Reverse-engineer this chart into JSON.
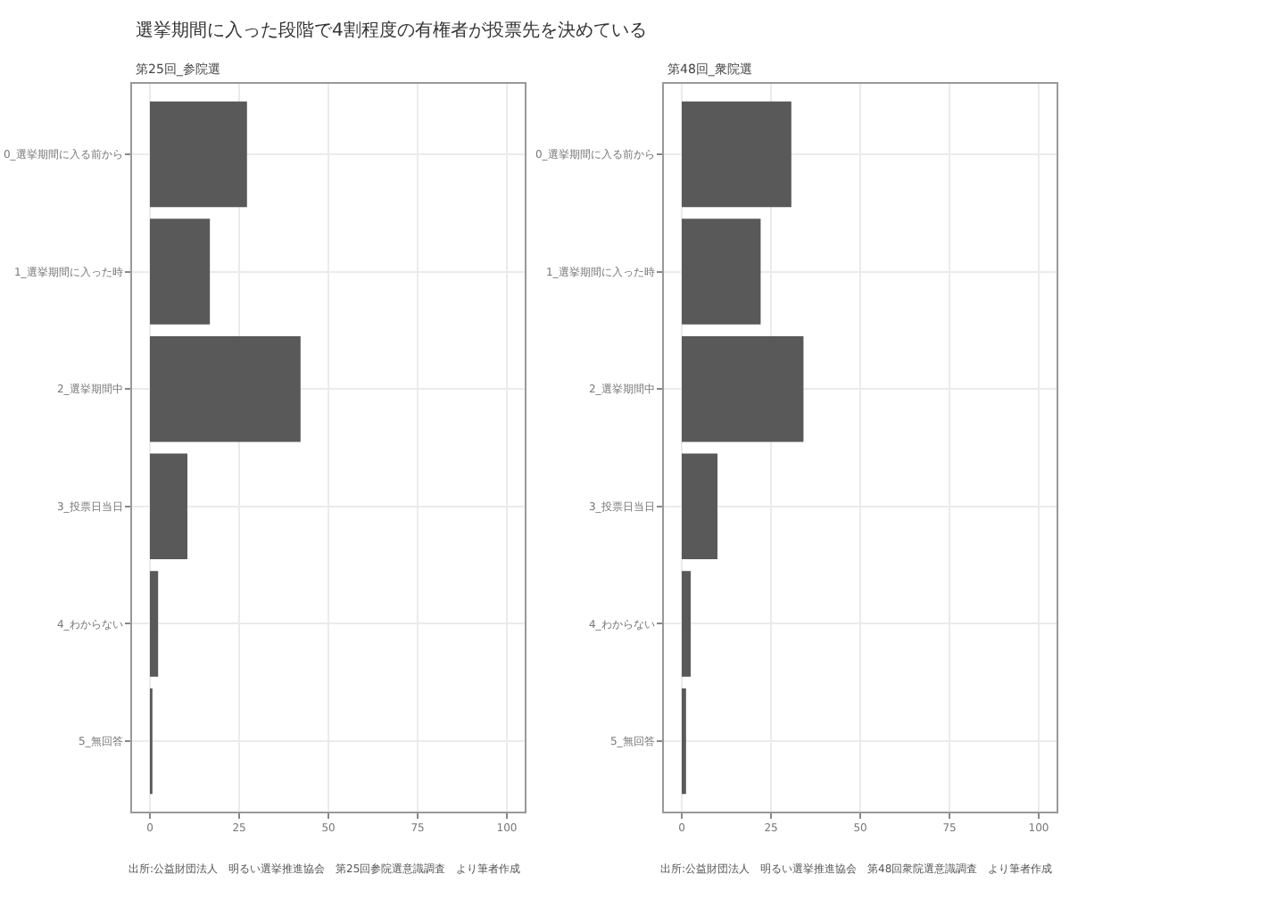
{
  "chart_data": [
    {
      "type": "bar",
      "orientation": "horizontal",
      "title": "選挙期間に入った段階で4割程度の有権者が投票先を決めている",
      "subtitle": "第25回_参院選",
      "categories": [
        "0_選挙期間に入る前から",
        "1_選挙期間に入った時",
        "2_選挙期間中",
        "3_投票日当日",
        "4_わからない",
        "5_無回答"
      ],
      "values": [
        27.2,
        16.8,
        42.2,
        10.5,
        2.3,
        0.7
      ],
      "color": "#595959",
      "xlim": [
        -5,
        105
      ],
      "xticks": [
        0,
        25,
        50,
        75,
        100
      ],
      "grid": true,
      "annotations": [
        "出所:公益財団法人　明るい選挙推進協会　第25回参院選意識調査　より筆者作成"
      ]
    },
    {
      "type": "bar",
      "orientation": "horizontal",
      "subtitle": "第48回_衆院選",
      "categories": [
        "0_選挙期間に入る前から",
        "1_選挙期間に入った時",
        "2_選挙期間中",
        "3_投票日当日",
        "4_わからない",
        "5_無回答"
      ],
      "values": [
        30.7,
        22.1,
        34.1,
        10.0,
        2.5,
        1.2
      ],
      "color": "#595959",
      "xlim": [
        -5,
        105
      ],
      "xticks": [
        0,
        25,
        50,
        75,
        100
      ],
      "grid": true,
      "annotations": [
        "出所:公益財団法人　明るい選挙推進協会　第48回衆院選意識調査　より筆者作成"
      ]
    }
  ]
}
